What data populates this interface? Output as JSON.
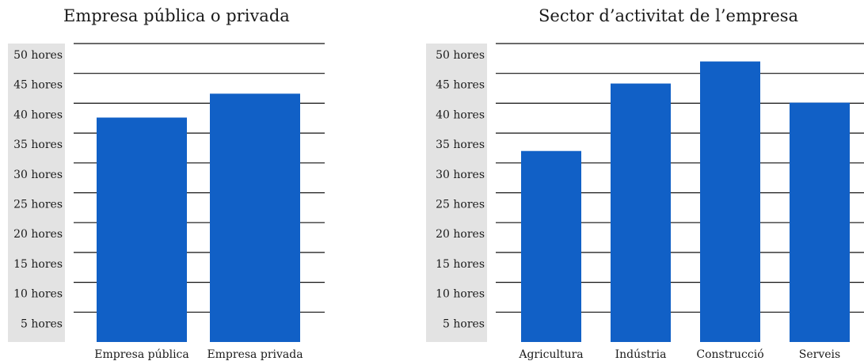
{
  "colors": {
    "bar": "#1160C6",
    "label_bg": "#E3E3E3",
    "grid": "#111111"
  },
  "chart_data": [
    {
      "type": "bar",
      "title": "Empresa pública o privada",
      "categories": [
        "Empresa pública",
        "Empresa privada"
      ],
      "values": [
        37.6,
        41.6
      ],
      "ylim": [
        0,
        50
      ],
      "yticks": [
        {
          "value": 50,
          "label": "50 hores"
        },
        {
          "value": 45,
          "label": "45 hores"
        },
        {
          "value": 40,
          "label": "40 hores"
        },
        {
          "value": 35,
          "label": "35 hores"
        },
        {
          "value": 30,
          "label": "30 hores"
        },
        {
          "value": 25,
          "label": "25 hores"
        },
        {
          "value": 20,
          "label": "20 hores"
        },
        {
          "value": 15,
          "label": "15 hores"
        },
        {
          "value": 10,
          "label": "10 hores"
        },
        {
          "value": 5,
          "label": "5 hores"
        }
      ],
      "grid": true
    },
    {
      "type": "bar",
      "title": "Sector d’activitat de l’empresa",
      "categories": [
        "Agricultura",
        "Indústria",
        "Construcció",
        "Serveis"
      ],
      "values": [
        32.0,
        43.3,
        47.0,
        40.1
      ],
      "ylim": [
        0,
        50
      ],
      "yticks": [
        {
          "value": 50,
          "label": "50 hores"
        },
        {
          "value": 45,
          "label": "45 hores"
        },
        {
          "value": 40,
          "label": "40 hores"
        },
        {
          "value": 35,
          "label": "35 hores"
        },
        {
          "value": 30,
          "label": "30 hores"
        },
        {
          "value": 25,
          "label": "25 hores"
        },
        {
          "value": 20,
          "label": "20 hores"
        },
        {
          "value": 15,
          "label": "15 hores"
        },
        {
          "value": 10,
          "label": "10 hores"
        },
        {
          "value": 5,
          "label": "5 hores"
        }
      ],
      "grid": true
    }
  ]
}
